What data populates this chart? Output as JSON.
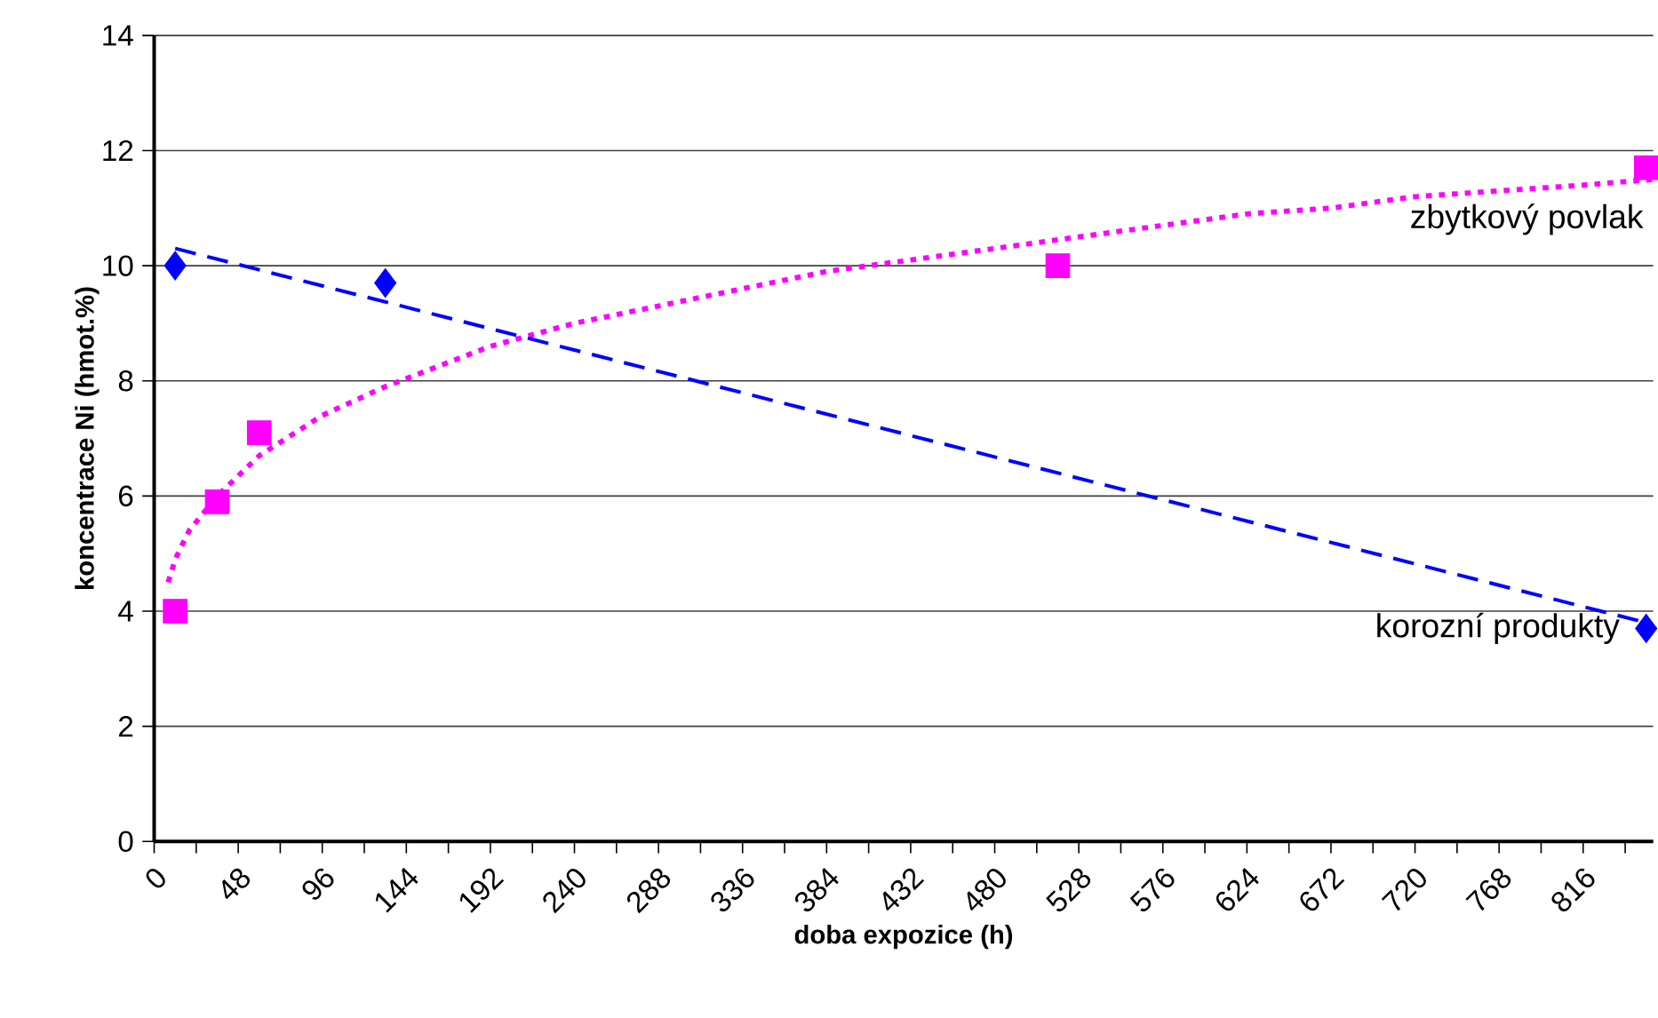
{
  "chart_data": {
    "type": "scatter",
    "xlabel": "doba expozice (h)",
    "ylabel": "koncentrace Ni (hmot.%)",
    "xlim": [
      0,
      856
    ],
    "ylim": [
      0,
      14
    ],
    "xticks": [
      0,
      {
        "value": 24,
        "label": null
      },
      48,
      {
        "value": 72,
        "label": null
      },
      96,
      {
        "value": 120,
        "label": null
      },
      144,
      {
        "value": 168,
        "label": null
      },
      192,
      {
        "value": 216,
        "label": null
      },
      240,
      {
        "value": 264,
        "label": null
      },
      288,
      {
        "value": 312,
        "label": null
      },
      336,
      {
        "value": 360,
        "label": null
      },
      384,
      {
        "value": 408,
        "label": null
      },
      432,
      {
        "value": 456,
        "label": null
      },
      480,
      {
        "value": 504,
        "label": null
      },
      528,
      {
        "value": 552,
        "label": null
      },
      576,
      {
        "value": 600,
        "label": null
      },
      624,
      {
        "value": 648,
        "label": null
      },
      672,
      {
        "value": 696,
        "label": null
      },
      720,
      {
        "value": 744,
        "label": null
      },
      768,
      {
        "value": 792,
        "label": null
      },
      816,
      {
        "value": 840,
        "label": null
      }
    ],
    "yticks": [
      0,
      2,
      4,
      6,
      8,
      10,
      12,
      14
    ],
    "grid": "y",
    "series": [
      {
        "name": "zbytkový povlak",
        "color": "#ff00ff",
        "marker": "square",
        "x": [
          12,
          36,
          60,
          516,
          852
        ],
        "values": [
          4.0,
          5.9,
          7.1,
          10.0,
          11.7
        ]
      },
      {
        "name": "korozní produkty",
        "color": "#0000ff",
        "marker": "diamond",
        "x": [
          12,
          132,
          852
        ],
        "values": [
          10.0,
          9.7,
          3.7
        ]
      },
      {
        "type": "line",
        "color": "#ff00ff",
        "line_style": "dotted",
        "marker": "none",
        "x": [
          8,
          12,
          20,
          36,
          60,
          96,
          132,
          192,
          240,
          288,
          336,
          384,
          432,
          480,
          528,
          576,
          624,
          672,
          720,
          768,
          816,
          856
        ],
        "values": [
          4.5,
          4.9,
          5.4,
          6.0,
          6.7,
          7.4,
          7.9,
          8.6,
          9.0,
          9.3,
          9.6,
          9.9,
          10.1,
          10.3,
          10.5,
          10.7,
          10.9,
          11.0,
          11.2,
          11.3,
          11.4,
          11.5
        ]
      },
      {
        "type": "line",
        "color": "#0000ff",
        "line_style": "dashed",
        "marker": "none",
        "x": [
          12,
          852
        ],
        "values": [
          10.3,
          3.8
        ]
      }
    ]
  }
}
